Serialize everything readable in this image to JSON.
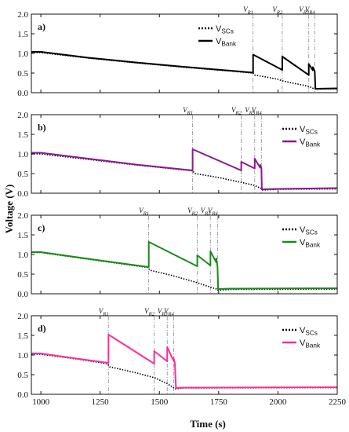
{
  "xlabel": "Time (s)",
  "ylabel": "Voltage (V)",
  "x_ticks": [
    "1000",
    "1250",
    "1500",
    "1750",
    "2000",
    "2250"
  ],
  "y_ticks": [
    "0.0",
    "0.5",
    "1.0",
    "1.5",
    "2.0"
  ],
  "legend": {
    "scs": {
      "base": "V",
      "sub": "SCs"
    },
    "bank": {
      "base": "V",
      "sub": "Bank"
    }
  },
  "colors": {
    "a": "#000000",
    "b": "#8b1a8b",
    "c": "#1a8a1a",
    "d": "#ff2d9a",
    "scs": "#000000",
    "guide": "#8a8a8a"
  },
  "chart_data": [
    {
      "type": "line",
      "panel": "a)",
      "xlim": [
        960,
        2250
      ],
      "ylim": [
        0,
        2
      ],
      "series": [
        {
          "name": "VSCs",
          "x": [
            960,
            990,
            1000,
            1200,
            1400,
            1600,
            1800,
            1895,
            1900,
            1950,
            2000,
            2020,
            2050,
            2100,
            2130,
            2145,
            2155,
            2250
          ],
          "y": [
            1.02,
            1.02,
            1.02,
            0.88,
            0.76,
            0.65,
            0.55,
            0.5,
            0.45,
            0.4,
            0.34,
            0.3,
            0.26,
            0.2,
            0.16,
            0.12,
            0.09,
            0.1
          ]
        },
        {
          "name": "VBank",
          "x": [
            960,
            990,
            1000,
            1200,
            1400,
            1600,
            1800,
            1895,
            1895,
            2018,
            2018,
            2130,
            2130,
            2147,
            2147,
            2155,
            2158,
            2250
          ],
          "y": [
            1.04,
            1.04,
            1.04,
            0.89,
            0.77,
            0.66,
            0.56,
            0.51,
            0.97,
            0.58,
            0.92,
            0.45,
            0.73,
            0.57,
            0.65,
            0.55,
            0.1,
            0.11
          ]
        }
      ],
      "annotations": [
        {
          "text": "V",
          "sub": "R1",
          "x": 1895
        },
        {
          "text": "V",
          "sub": "R2",
          "x": 2018
        },
        {
          "text": "V",
          "sub": "R3",
          "x": 2130
        },
        {
          "text": "V",
          "sub": "R4",
          "x": 2155
        }
      ]
    },
    {
      "type": "line",
      "panel": "b)",
      "xlim": [
        960,
        2250
      ],
      "ylim": [
        0,
        2
      ],
      "series": [
        {
          "name": "VSCs",
          "x": [
            960,
            990,
            1000,
            1200,
            1400,
            1640,
            1650,
            1750,
            1850,
            1900,
            1930,
            1935,
            2000,
            2250
          ],
          "y": [
            1.0,
            1.0,
            1.0,
            0.86,
            0.72,
            0.57,
            0.5,
            0.4,
            0.27,
            0.2,
            0.12,
            0.08,
            0.1,
            0.11
          ]
        },
        {
          "name": "VBank",
          "x": [
            960,
            990,
            1000,
            1200,
            1400,
            1640,
            1640,
            1845,
            1845,
            1902,
            1902,
            1925,
            1925,
            1930,
            1932,
            2000,
            2250
          ],
          "y": [
            1.03,
            1.03,
            1.03,
            0.88,
            0.73,
            0.58,
            1.12,
            0.58,
            0.8,
            0.63,
            0.88,
            0.65,
            0.72,
            0.65,
            0.1,
            0.11,
            0.13
          ]
        }
      ],
      "annotations": [
        {
          "text": "V",
          "sub": "R1",
          "x": 1640
        },
        {
          "text": "V",
          "sub": "R2",
          "x": 1845
        },
        {
          "text": "V",
          "sub": "R3",
          "x": 1902
        },
        {
          "text": "V",
          "sub": "R4",
          "x": 1930
        }
      ]
    },
    {
      "type": "line",
      "panel": "c)",
      "xlim": [
        960,
        2250
      ],
      "ylim": [
        0,
        2
      ],
      "series": [
        {
          "name": "VSCs",
          "x": [
            960,
            1000,
            1200,
            1450,
            1460,
            1550,
            1650,
            1700,
            1740,
            1745,
            1800,
            2250
          ],
          "y": [
            1.05,
            1.05,
            0.88,
            0.67,
            0.6,
            0.47,
            0.3,
            0.2,
            0.12,
            0.09,
            0.11,
            0.12
          ]
        },
        {
          "name": "VBank",
          "x": [
            960,
            1000,
            1200,
            1455,
            1455,
            1660,
            1660,
            1715,
            1715,
            1740,
            1740,
            1745,
            1748,
            1800,
            2250
          ],
          "y": [
            1.06,
            1.06,
            0.89,
            0.68,
            1.32,
            0.7,
            0.98,
            0.72,
            1.08,
            0.8,
            0.9,
            0.7,
            0.12,
            0.13,
            0.14
          ]
        }
      ],
      "annotations": [
        {
          "text": "V",
          "sub": "R1",
          "x": 1455
        },
        {
          "text": "V",
          "sub": "R2",
          "x": 1660
        },
        {
          "text": "V",
          "sub": "R3",
          "x": 1715
        },
        {
          "text": "V",
          "sub": "R4",
          "x": 1745
        }
      ]
    },
    {
      "type": "line",
      "panel": "d)",
      "xlim": [
        960,
        2250
      ],
      "ylim": [
        0,
        2
      ],
      "series": [
        {
          "name": "VSCs",
          "x": [
            960,
            1000,
            1150,
            1280,
            1290,
            1400,
            1480,
            1530,
            1560,
            1565,
            1600,
            2250
          ],
          "y": [
            1.02,
            1.02,
            0.9,
            0.78,
            0.7,
            0.55,
            0.42,
            0.28,
            0.17,
            0.14,
            0.16,
            0.17
          ]
        },
        {
          "name": "VBank",
          "x": [
            960,
            1000,
            1150,
            1285,
            1285,
            1478,
            1478,
            1533,
            1533,
            1560,
            1560,
            1565,
            1570,
            1600,
            2250
          ],
          "y": [
            1.04,
            1.04,
            0.91,
            0.8,
            1.52,
            0.78,
            1.1,
            0.84,
            1.2,
            0.85,
            0.92,
            0.8,
            0.16,
            0.17,
            0.18
          ]
        }
      ],
      "annotations": [
        {
          "text": "V",
          "sub": "R1",
          "x": 1285
        },
        {
          "text": "V",
          "sub": "R2",
          "x": 1478
        },
        {
          "text": "V",
          "sub": "R3",
          "x": 1533
        },
        {
          "text": "V",
          "sub": "R4",
          "x": 1560
        }
      ]
    }
  ]
}
